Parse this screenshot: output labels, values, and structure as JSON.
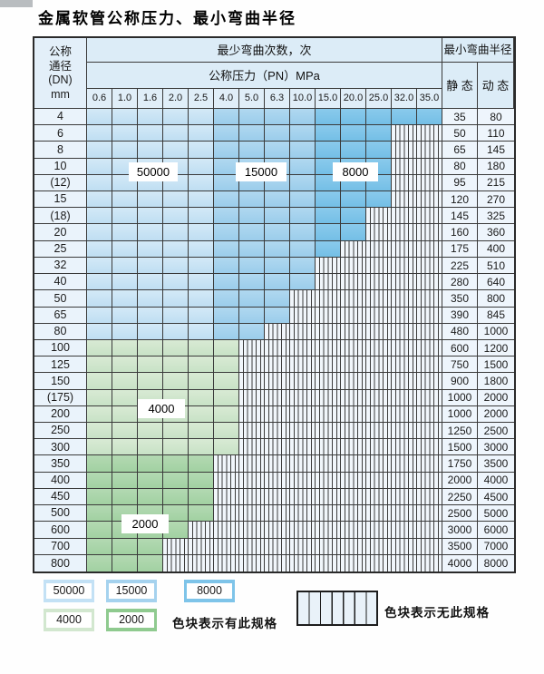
{
  "page": {
    "title": "金属软管公称压力、最小弯曲半径"
  },
  "table": {
    "corner": {
      "line1": "公称",
      "line2": "通径",
      "line3": "(DN)",
      "line4": "mm"
    },
    "header": {
      "cycles": "最少弯曲次数，次",
      "radius": "最小弯曲半径",
      "pressure": "公称压力（PN）MPa",
      "static": "静 态",
      "dynamic": "动 态"
    },
    "pressure_columns": [
      "0.6",
      "1.0",
      "1.6",
      "2.0",
      "2.5",
      "4.0",
      "5.0",
      "6.3",
      "10.0",
      "15.0",
      "20.0",
      "25.0",
      "32.0",
      "35.0"
    ],
    "rows": [
      {
        "dn": "4",
        "through": 13,
        "group": "blue",
        "max_pn": "35.0",
        "static": "35",
        "dynamic": "80"
      },
      {
        "dn": "6",
        "through": 11,
        "group": "blue",
        "max_pn": "25.0",
        "static": "50",
        "dynamic": "110"
      },
      {
        "dn": "8",
        "through": 11,
        "group": "blue",
        "max_pn": "25.0",
        "static": "65",
        "dynamic": "145"
      },
      {
        "dn": "10",
        "through": 11,
        "group": "blue",
        "max_pn": "25.0",
        "static": "80",
        "dynamic": "180"
      },
      {
        "dn": "(12)",
        "through": 11,
        "group": "blue",
        "max_pn": "25.0",
        "static": "95",
        "dynamic": "215"
      },
      {
        "dn": "15",
        "through": 11,
        "group": "blue",
        "max_pn": "25.0",
        "static": "120",
        "dynamic": "270"
      },
      {
        "dn": "(18)",
        "through": 10,
        "group": "blue",
        "max_pn": "20.0",
        "static": "145",
        "dynamic": "325"
      },
      {
        "dn": "20",
        "through": 10,
        "group": "blue",
        "max_pn": "20.0",
        "static": "160",
        "dynamic": "360"
      },
      {
        "dn": "25",
        "through": 9,
        "group": "blue",
        "max_pn": "15.0",
        "static": "175",
        "dynamic": "400"
      },
      {
        "dn": "32",
        "through": 8,
        "group": "blue",
        "max_pn": "10.0",
        "static": "225",
        "dynamic": "510"
      },
      {
        "dn": "40",
        "through": 8,
        "group": "blue",
        "max_pn": "10.0",
        "static": "280",
        "dynamic": "640"
      },
      {
        "dn": "50",
        "through": 7,
        "group": "blue",
        "max_pn": "6.3",
        "static": "350",
        "dynamic": "800"
      },
      {
        "dn": "65",
        "through": 7,
        "group": "blue",
        "max_pn": "6.3",
        "static": "390",
        "dynamic": "845"
      },
      {
        "dn": "80",
        "through": 6,
        "group": "blue",
        "max_pn": "5.0",
        "static": "480",
        "dynamic": "1000"
      },
      {
        "dn": "100",
        "through": 5,
        "group": "g40",
        "max_pn": "4.0",
        "static": "600",
        "dynamic": "1200"
      },
      {
        "dn": "125",
        "through": 5,
        "group": "g40",
        "max_pn": "4.0",
        "static": "750",
        "dynamic": "1500"
      },
      {
        "dn": "150",
        "through": 5,
        "group": "g40",
        "max_pn": "4.0",
        "static": "900",
        "dynamic": "1800"
      },
      {
        "dn": "(175)",
        "through": 5,
        "group": "g40",
        "max_pn": "4.0",
        "static": "1000",
        "dynamic": "2000"
      },
      {
        "dn": "200",
        "through": 5,
        "group": "g40",
        "max_pn": "4.0",
        "static": "1000",
        "dynamic": "2000"
      },
      {
        "dn": "250",
        "through": 5,
        "group": "g40",
        "max_pn": "4.0",
        "static": "1250",
        "dynamic": "2500"
      },
      {
        "dn": "300",
        "through": 5,
        "group": "g40",
        "max_pn": "4.0",
        "static": "1500",
        "dynamic": "3000"
      },
      {
        "dn": "350",
        "through": 4,
        "group": "g20",
        "max_pn": "2.5",
        "static": "1750",
        "dynamic": "3500"
      },
      {
        "dn": "400",
        "through": 4,
        "group": "g20",
        "max_pn": "2.5",
        "static": "2000",
        "dynamic": "4000"
      },
      {
        "dn": "450",
        "through": 4,
        "group": "g20",
        "max_pn": "2.5",
        "static": "2250",
        "dynamic": "4500"
      },
      {
        "dn": "500",
        "through": 4,
        "group": "g20",
        "max_pn": "2.5",
        "static": "2500",
        "dynamic": "5000"
      },
      {
        "dn": "600",
        "through": 3,
        "group": "g20",
        "max_pn": "2.0",
        "static": "3000",
        "dynamic": "6000"
      },
      {
        "dn": "700",
        "through": 2,
        "group": "g20",
        "max_pn": "1.6",
        "static": "3500",
        "dynamic": "7000"
      },
      {
        "dn": "800",
        "through": 2,
        "group": "g20",
        "max_pn": "1.6",
        "static": "4000",
        "dynamic": "8000"
      }
    ]
  },
  "overlays": {
    "tag_50000": "50000",
    "tag_15000": "15000",
    "tag_8000": "8000",
    "tag_4000": "4000",
    "tag_2000": "2000"
  },
  "legend": {
    "items": [
      {
        "label": "50000",
        "color": "#c3e1f5"
      },
      {
        "label": "15000",
        "color": "#a5d2ee"
      },
      {
        "label": "8000",
        "color": "#7ec4e9"
      },
      {
        "label": "4000",
        "color": "#d2e7cf"
      },
      {
        "label": "2000",
        "color": "#8fca8f"
      }
    ],
    "has_spec_text": "色块表示有此规格",
    "no_spec_text": "色块表示无此规格"
  },
  "colors": {
    "blue_50000": "#c9e3f5",
    "blue_15000": "#a5d2ee",
    "blue_8000": "#7ec4e9",
    "green_4000": "#d2e7cf",
    "green_2000": "#abd6ab",
    "header_bg": "#dcecf7",
    "stripe_bg": "#f1f6fb",
    "border": "#3a3a3a"
  },
  "chart_data": {
    "type": "table",
    "title": "金属软管公称压力、最小弯曲半径",
    "columns_MPa": [
      0.6,
      1.0,
      1.6,
      2.0,
      2.5,
      4.0,
      5.0,
      6.3,
      10.0,
      15.0,
      20.0,
      25.0,
      32.0,
      35.0
    ],
    "bend_cycle_zones": [
      {
        "cycles": 50000,
        "applies": "blue rows DN4-80, PN 0.6-2.5 MPa"
      },
      {
        "cycles": 15000,
        "applies": "blue rows DN4-80, PN 4.0-10.0 MPa"
      },
      {
        "cycles": 8000,
        "applies": "blue rows DN4-80, PN 15.0-35.0 MPa"
      },
      {
        "cycles": 4000,
        "applies": "green rows DN100-300, PN 0.6-4.0 MPa"
      },
      {
        "cycles": 2000,
        "applies": "green rows DN350-800"
      }
    ],
    "rows": [
      {
        "dn": "4",
        "max_pn": 35.0,
        "static_radius": 35,
        "dynamic_radius": 80
      },
      {
        "dn": "6",
        "max_pn": 25.0,
        "static_radius": 50,
        "dynamic_radius": 110
      },
      {
        "dn": "8",
        "max_pn": 25.0,
        "static_radius": 65,
        "dynamic_radius": 145
      },
      {
        "dn": "10",
        "max_pn": 25.0,
        "static_radius": 80,
        "dynamic_radius": 180
      },
      {
        "dn": "(12)",
        "max_pn": 25.0,
        "static_radius": 95,
        "dynamic_radius": 215
      },
      {
        "dn": "15",
        "max_pn": 25.0,
        "static_radius": 120,
        "dynamic_radius": 270
      },
      {
        "dn": "(18)",
        "max_pn": 20.0,
        "static_radius": 145,
        "dynamic_radius": 325
      },
      {
        "dn": "20",
        "max_pn": 20.0,
        "static_radius": 160,
        "dynamic_radius": 360
      },
      {
        "dn": "25",
        "max_pn": 15.0,
        "static_radius": 175,
        "dynamic_radius": 400
      },
      {
        "dn": "32",
        "max_pn": 10.0,
        "static_radius": 225,
        "dynamic_radius": 510
      },
      {
        "dn": "40",
        "max_pn": 10.0,
        "static_radius": 280,
        "dynamic_radius": 640
      },
      {
        "dn": "50",
        "max_pn": 6.3,
        "static_radius": 350,
        "dynamic_radius": 800
      },
      {
        "dn": "65",
        "max_pn": 6.3,
        "static_radius": 390,
        "dynamic_radius": 845
      },
      {
        "dn": "80",
        "max_pn": 5.0,
        "static_radius": 480,
        "dynamic_radius": 1000
      },
      {
        "dn": "100",
        "max_pn": 4.0,
        "static_radius": 600,
        "dynamic_radius": 1200
      },
      {
        "dn": "125",
        "max_pn": 4.0,
        "static_radius": 750,
        "dynamic_radius": 1500
      },
      {
        "dn": "150",
        "max_pn": 4.0,
        "static_radius": 900,
        "dynamic_radius": 1800
      },
      {
        "dn": "(175)",
        "max_pn": 4.0,
        "static_radius": 1000,
        "dynamic_radius": 2000
      },
      {
        "dn": "200",
        "max_pn": 4.0,
        "static_radius": 1000,
        "dynamic_radius": 2000
      },
      {
        "dn": "250",
        "max_pn": 4.0,
        "static_radius": 1250,
        "dynamic_radius": 2500
      },
      {
        "dn": "300",
        "max_pn": 4.0,
        "static_radius": 1500,
        "dynamic_radius": 3000
      },
      {
        "dn": "350",
        "max_pn": 2.5,
        "static_radius": 1750,
        "dynamic_radius": 3500
      },
      {
        "dn": "400",
        "max_pn": 2.5,
        "static_radius": 2000,
        "dynamic_radius": 4000
      },
      {
        "dn": "450",
        "max_pn": 2.5,
        "static_radius": 2250,
        "dynamic_radius": 4500
      },
      {
        "dn": "500",
        "max_pn": 2.5,
        "static_radius": 2500,
        "dynamic_radius": 5000
      },
      {
        "dn": "600",
        "max_pn": 2.0,
        "static_radius": 3000,
        "dynamic_radius": 6000
      },
      {
        "dn": "700",
        "max_pn": 1.6,
        "static_radius": 3500,
        "dynamic_radius": 7000
      },
      {
        "dn": "800",
        "max_pn": 1.6,
        "static_radius": 4000,
        "dynamic_radius": 8000
      }
    ]
  }
}
